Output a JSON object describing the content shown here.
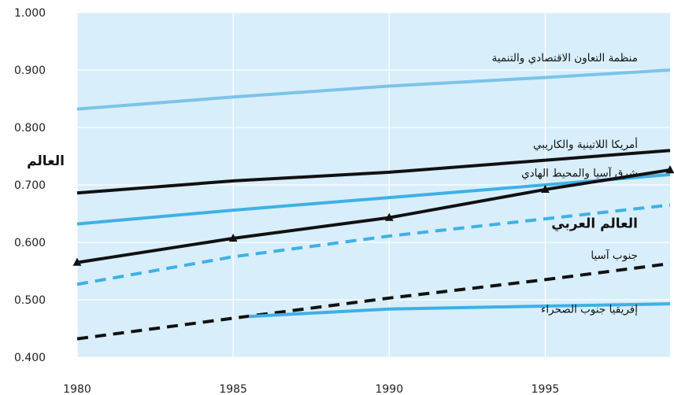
{
  "chart_data": {
    "type": "line",
    "xlim": [
      1980,
      1999
    ],
    "ylim": [
      0.4,
      1.0
    ],
    "x_ticks": [
      "1980",
      "1985",
      "1990",
      "1995"
    ],
    "y_ticks": [
      "1.000",
      "0.900",
      "0.800",
      "0.700",
      "0.600",
      "0.500",
      "0.400"
    ],
    "grid": true,
    "background_color": "#d8eefb",
    "series": [
      {
        "name": "منظمة التعاون الاقتصادي والتنمية",
        "color": "#7cc3ea",
        "style": "solid",
        "marker": "none",
        "label_pos": [
          1999,
          0.922
        ],
        "label_bold": false,
        "points": [
          [
            1980,
            0.832
          ],
          [
            1985,
            0.853
          ],
          [
            1990,
            0.872
          ],
          [
            1995,
            0.887
          ],
          [
            1999,
            0.9
          ]
        ]
      },
      {
        "name": "أمريكا اللاتينية والكاريبي",
        "color": "#111111",
        "style": "solid",
        "marker": "none",
        "label_pos": [
          1999,
          0.771
        ],
        "label_bold": false,
        "points": [
          [
            1980,
            0.686
          ],
          [
            1985,
            0.707
          ],
          [
            1990,
            0.722
          ],
          [
            1995,
            0.743
          ],
          [
            1999,
            0.76
          ]
        ]
      },
      {
        "name": "شرق آسيا والمحيط الهادي",
        "color": "#3fb0e6",
        "style": "solid",
        "marker": "none",
        "label_pos": [
          1999,
          0.721
        ],
        "label_bold": false,
        "points": [
          [
            1980,
            0.632
          ],
          [
            1985,
            0.656
          ],
          [
            1990,
            0.678
          ],
          [
            1995,
            0.7
          ],
          [
            1999,
            0.718
          ]
        ]
      },
      {
        "name": "العالم",
        "color": "#111111",
        "style": "solid",
        "marker": "triangle",
        "label_pos": [
          1980.1,
          0.741
        ],
        "label_bold": true,
        "points": [
          [
            1980,
            0.565
          ],
          [
            1985,
            0.607
          ],
          [
            1990,
            0.643
          ],
          [
            1995,
            0.692
          ],
          [
            1999,
            0.726
          ]
        ]
      },
      {
        "name": "العالم العربي",
        "color": "#3fb0e6",
        "style": "dashed",
        "marker": "none",
        "label_pos": [
          1999,
          0.632
        ],
        "label_bold": true,
        "points": [
          [
            1980,
            0.527
          ],
          [
            1985,
            0.575
          ],
          [
            1990,
            0.611
          ],
          [
            1995,
            0.641
          ],
          [
            1999,
            0.665
          ]
        ]
      },
      {
        "name": "جنوب آسيا",
        "color": "#111111",
        "style": "dashed",
        "marker": "none",
        "label_pos": [
          1999,
          0.578
        ],
        "label_bold": false,
        "points": [
          [
            1980,
            0.432
          ],
          [
            1985,
            0.468
          ],
          [
            1990,
            0.503
          ],
          [
            1995,
            0.535
          ],
          [
            1999,
            0.563
          ]
        ]
      },
      {
        "name": "إفريقيا جنوب الصحراء",
        "color": "#3fb0e6",
        "style": "solid",
        "marker": "none",
        "label_pos": [
          1999,
          0.484
        ],
        "label_bold": false,
        "points": [
          [
            1985.5,
            0.471
          ],
          [
            1990,
            0.484
          ],
          [
            1995,
            0.489
          ],
          [
            1999,
            0.493
          ]
        ]
      }
    ]
  }
}
